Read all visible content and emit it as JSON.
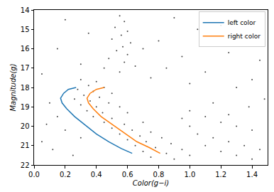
{
  "chart_data": {
    "type": "scatter",
    "x_label": "Color(g−i)",
    "y_label": "Magnitude(g)",
    "xlim": [
      0,
      1.5
    ],
    "ylim": [
      22,
      14
    ],
    "xticks": [
      {
        "value": 0,
        "label": "0.0"
      },
      0.2,
      0.4,
      0.6,
      0.8,
      {
        "value": 1,
        "label": "1.0"
      },
      1.2,
      1.4
    ],
    "yticks": [
      14,
      15,
      16,
      17,
      18,
      19,
      20,
      21,
      22
    ],
    "grid": false,
    "legend": "upper right",
    "series": [
      {
        "type": "scatter",
        "marker": "point",
        "color": "#444444",
        "x": [
          0.55,
          0.58,
          0.52,
          0.6,
          0.56,
          0.5,
          0.62,
          0.57,
          0.53,
          0.6,
          0.48,
          0.58,
          0.65,
          0.45,
          0.55,
          0.2,
          0.9,
          1.2,
          0.35,
          0.8,
          1.05,
          1.35,
          0.15,
          0.7,
          0.95,
          1.25,
          1.45,
          0.3,
          0.85,
          1.1,
          1.4,
          0.05,
          0.75,
          1.0,
          1.3,
          0.3,
          0.4,
          0.35,
          0.45,
          0.28,
          0.38,
          0.5,
          0.32,
          0.42,
          0.26,
          0.36,
          0.48,
          0.3,
          0.4,
          0.55,
          0.34,
          0.44,
          0.6,
          0.38,
          0.5,
          0.45,
          0.58,
          0.7,
          0.5,
          0.63,
          0.75,
          0.55,
          0.68,
          0.82,
          0.6,
          0.72,
          0.88,
          0.65,
          0.78,
          0.95,
          0.7,
          0.85,
          1.0,
          0.75,
          0.9,
          1.0,
          1.1,
          1.2,
          1.3,
          1.4,
          1.05,
          1.15,
          1.25,
          1.35,
          1.45,
          1.1,
          1.2,
          1.3,
          1.4,
          1.0,
          0.95,
          1.25,
          1.38,
          1.48,
          1.15,
          0.1,
          0.15,
          0.2,
          0.05,
          0.25,
          0.12,
          0.3,
          0.08
        ],
        "y": [
          14.3,
          14.6,
          14.9,
          15.1,
          15.3,
          15.5,
          15.7,
          15.9,
          16.1,
          16.3,
          16.5,
          16.7,
          16.9,
          17.0,
          17.2,
          14.5,
          14.4,
          14.8,
          15.2,
          15.6,
          15.0,
          15.4,
          16.0,
          16.0,
          16.4,
          16.2,
          16.6,
          16.8,
          17.0,
          17.2,
          17.6,
          17.3,
          17.5,
          17.8,
          18.0,
          17.6,
          17.7,
          17.9,
          18.0,
          18.1,
          18.2,
          18.3,
          18.4,
          18.5,
          18.6,
          18.7,
          18.8,
          18.9,
          19.0,
          19.0,
          19.2,
          19.3,
          19.3,
          19.5,
          19.6,
          19.8,
          19.9,
          19.8,
          20.1,
          20.2,
          20.3,
          20.4,
          20.5,
          20.6,
          20.7,
          20.8,
          20.9,
          21.0,
          21.1,
          21.2,
          21.3,
          21.4,
          21.5,
          21.6,
          21.7,
          19.2,
          19.5,
          19.8,
          20.0,
          20.2,
          20.4,
          20.6,
          20.8,
          21.0,
          21.2,
          21.0,
          21.3,
          21.5,
          21.7,
          20.0,
          19.6,
          19.4,
          19.0,
          18.6,
          18.8,
          18.8,
          19.5,
          20.2,
          20.8,
          21.5,
          21.2,
          20.6,
          19.9
        ]
      },
      {
        "name": "left color",
        "type": "line",
        "color": "#1f77b4",
        "x": [
          0.27,
          0.22,
          0.19,
          0.17,
          0.18,
          0.21,
          0.26,
          0.32,
          0.4,
          0.48,
          0.56,
          0.63
        ],
        "y": [
          18.0,
          18.1,
          18.3,
          18.55,
          18.8,
          19.1,
          19.5,
          19.9,
          20.4,
          20.8,
          21.15,
          21.4
        ]
      },
      {
        "name": "right color",
        "type": "line",
        "color": "#ff7f0e",
        "x": [
          0.45,
          0.4,
          0.36,
          0.34,
          0.35,
          0.38,
          0.43,
          0.5,
          0.58,
          0.66,
          0.74,
          0.81
        ],
        "y": [
          18.0,
          18.1,
          18.3,
          18.55,
          18.8,
          19.1,
          19.5,
          19.9,
          20.35,
          20.8,
          21.1,
          21.4
        ]
      }
    ]
  }
}
